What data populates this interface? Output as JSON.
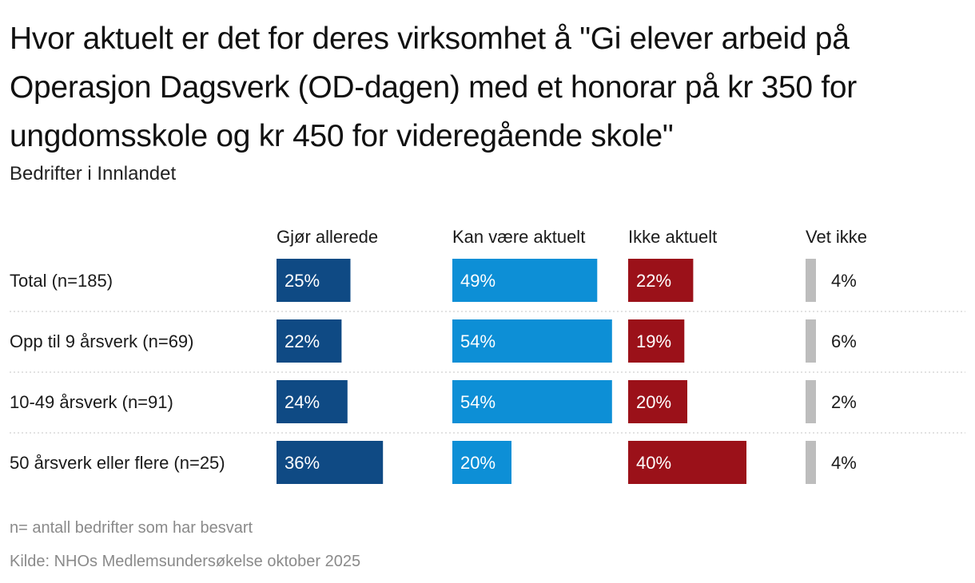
{
  "title": "Hvor aktuelt er det for deres virksomhet å \"Gi elever arbeid på Operasjon Dagsverk (OD-dagen) med et honorar på kr 350 for ungdomsskole og kr 450 for videregående skole\"",
  "subtitle": "Bedrifter i Innlandet",
  "note": "n= antall bedrifter som har besvart",
  "source": "Kilde: NHOs Medlemsundersøkelse oktober 2025",
  "chart_data": {
    "type": "bar",
    "layout": "split-bars",
    "categories": [
      "Total (n=185)",
      "Opp til 9 årsverk (n=69)",
      "10-49 årsverk (n=91)",
      "50 årsverk eller flere (n=25)"
    ],
    "series": [
      {
        "name": "Gjør allerede",
        "color": "#0f4a84",
        "label_inside": true,
        "values": [
          25,
          22,
          24,
          36
        ]
      },
      {
        "name": "Kan være aktuelt",
        "color": "#0d8fd6",
        "label_inside": true,
        "values": [
          49,
          54,
          54,
          20
        ]
      },
      {
        "name": "Ikke aktuelt",
        "color": "#9b1119",
        "label_inside": true,
        "values": [
          22,
          19,
          20,
          40
        ]
      },
      {
        "name": "Vet ikke",
        "color": "#bdbdbd",
        "label_inside": false,
        "values": [
          4,
          6,
          2,
          4
        ]
      }
    ],
    "value_suffix": "%",
    "grid": false,
    "row_separators": "dotted"
  }
}
